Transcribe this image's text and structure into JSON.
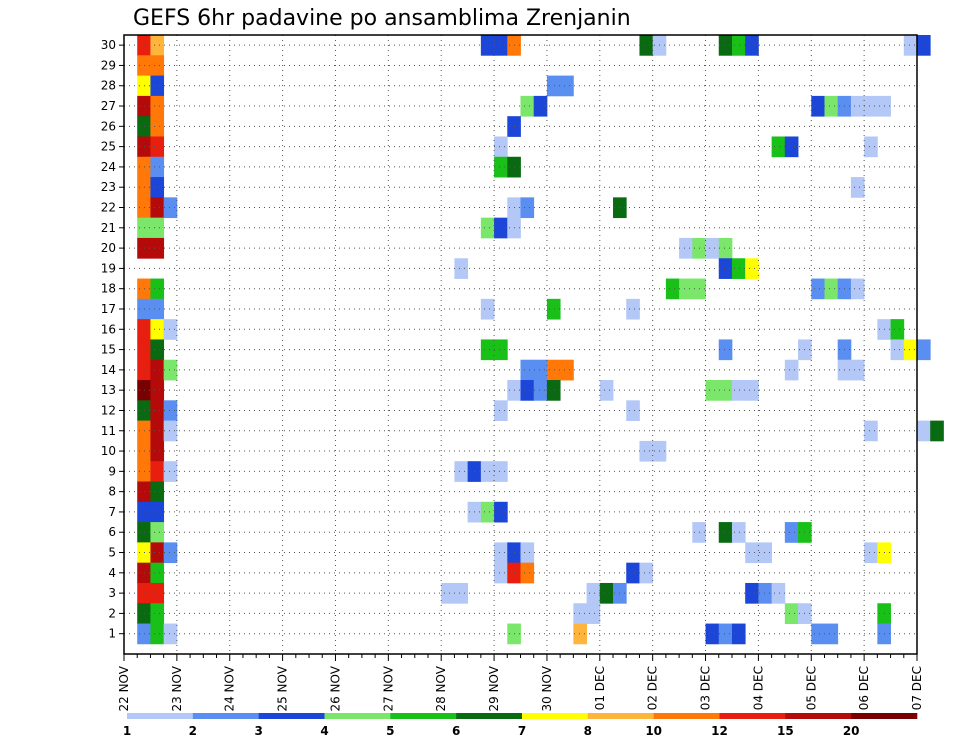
{
  "title": "GEFS 6hr padavine po ansamblima Zrenjanin",
  "chart_data": {
    "type": "heatmap",
    "title": "GEFS 6hr padavine po ansamblima Zrenjanin",
    "xlabel": "",
    "ylabel": "",
    "grid": true,
    "x_ticks": [
      "22 NOV",
      "23 NOV",
      "24 NOV",
      "25 NOV",
      "26 NOV",
      "27 NOV",
      "28 NOV",
      "29 NOV",
      "30 NOV",
      "01 DEC",
      "02 DEC",
      "03 DEC",
      "04 DEC",
      "05 DEC",
      "06 DEC",
      "07 DEC"
    ],
    "y_ticks": [
      "1",
      "2",
      "3",
      "4",
      "5",
      "6",
      "7",
      "8",
      "9",
      "10",
      "11",
      "12",
      "13",
      "14",
      "15",
      "16",
      "17",
      "18",
      "19",
      "20",
      "21",
      "22",
      "23",
      "24",
      "25",
      "26",
      "27",
      "28",
      "29",
      "30"
    ],
    "x_range_steps": [
      0,
      60
    ],
    "y_range_members": [
      0,
      30
    ],
    "colorbar": {
      "labels": [
        "1",
        "2",
        "3",
        "4",
        "5",
        "6",
        "7",
        "8",
        "10",
        "12",
        "15",
        "20"
      ],
      "colors": [
        "#b4c8f8",
        "#5a8ef0",
        "#1c46d8",
        "#7ae66a",
        "#18c018",
        "#0a6a12",
        "#ffff00",
        "#ffb43c",
        "#ff7808",
        "#e81e0e",
        "#b40a0a",
        "#780000"
      ]
    },
    "note_cells": "cells: [member, step_index_6h_from_22NOV00, color_class_0to11]",
    "cells": [
      [
        30,
        1,
        9
      ],
      [
        30,
        2,
        7
      ],
      [
        30,
        27,
        2
      ],
      [
        30,
        28,
        2
      ],
      [
        30,
        29,
        8
      ],
      [
        30,
        39,
        5
      ],
      [
        30,
        40,
        0
      ],
      [
        30,
        45,
        5
      ],
      [
        30,
        46,
        4
      ],
      [
        30,
        47,
        2
      ],
      [
        30,
        59,
        0
      ],
      [
        30,
        60,
        2
      ],
      [
        29,
        1,
        8
      ],
      [
        29,
        2,
        8
      ],
      [
        28,
        1,
        6
      ],
      [
        28,
        2,
        2
      ],
      [
        28,
        32,
        1
      ],
      [
        28,
        33,
        1
      ],
      [
        27,
        1,
        10
      ],
      [
        27,
        2,
        8
      ],
      [
        27,
        30,
        3
      ],
      [
        27,
        31,
        2
      ],
      [
        27,
        52,
        2
      ],
      [
        27,
        53,
        3
      ],
      [
        27,
        54,
        1
      ],
      [
        27,
        55,
        0
      ],
      [
        27,
        56,
        0
      ],
      [
        27,
        57,
        0
      ],
      [
        26,
        1,
        5
      ],
      [
        26,
        2,
        8
      ],
      [
        26,
        29,
        2
      ],
      [
        25,
        1,
        10
      ],
      [
        25,
        2,
        9
      ],
      [
        25,
        28,
        0
      ],
      [
        25,
        49,
        4
      ],
      [
        25,
        50,
        2
      ],
      [
        25,
        56,
        0
      ],
      [
        24,
        1,
        8
      ],
      [
        24,
        2,
        1
      ],
      [
        24,
        28,
        4
      ],
      [
        24,
        29,
        5
      ],
      [
        23,
        1,
        8
      ],
      [
        23,
        2,
        2
      ],
      [
        23,
        55,
        0
      ],
      [
        22,
        1,
        8
      ],
      [
        22,
        2,
        10
      ],
      [
        22,
        3,
        1
      ],
      [
        22,
        29,
        0
      ],
      [
        22,
        30,
        1
      ],
      [
        22,
        37,
        5
      ],
      [
        21,
        1,
        3
      ],
      [
        21,
        2,
        3
      ],
      [
        21,
        27,
        3
      ],
      [
        21,
        28,
        2
      ],
      [
        21,
        29,
        0
      ],
      [
        20,
        1,
        10
      ],
      [
        20,
        2,
        10
      ],
      [
        20,
        42,
        0
      ],
      [
        20,
        43,
        3
      ],
      [
        20,
        44,
        0
      ],
      [
        20,
        45,
        3
      ],
      [
        19,
        25,
        0
      ],
      [
        19,
        45,
        2
      ],
      [
        19,
        46,
        4
      ],
      [
        19,
        47,
        6
      ],
      [
        18,
        1,
        8
      ],
      [
        18,
        2,
        4
      ],
      [
        18,
        41,
        4
      ],
      [
        18,
        42,
        3
      ],
      [
        18,
        43,
        3
      ],
      [
        18,
        52,
        1
      ],
      [
        18,
        53,
        3
      ],
      [
        18,
        54,
        1
      ],
      [
        18,
        55,
        0
      ],
      [
        17,
        1,
        1
      ],
      [
        17,
        2,
        1
      ],
      [
        17,
        27,
        0
      ],
      [
        17,
        32,
        4
      ],
      [
        17,
        38,
        0
      ],
      [
        16,
        1,
        9
      ],
      [
        16,
        2,
        6
      ],
      [
        16,
        3,
        0
      ],
      [
        16,
        57,
        0
      ],
      [
        16,
        58,
        4
      ],
      [
        15,
        1,
        9
      ],
      [
        15,
        2,
        5
      ],
      [
        15,
        27,
        4
      ],
      [
        15,
        28,
        4
      ],
      [
        15,
        45,
        1
      ],
      [
        15,
        51,
        0
      ],
      [
        15,
        54,
        1
      ],
      [
        15,
        58,
        0
      ],
      [
        15,
        59,
        6
      ],
      [
        15,
        60,
        1
      ],
      [
        14,
        1,
        9
      ],
      [
        14,
        2,
        10
      ],
      [
        14,
        3,
        3
      ],
      [
        14,
        30,
        1
      ],
      [
        14,
        31,
        1
      ],
      [
        14,
        32,
        8
      ],
      [
        14,
        33,
        8
      ],
      [
        14,
        50,
        0
      ],
      [
        14,
        54,
        0
      ],
      [
        14,
        55,
        0
      ],
      [
        13,
        1,
        11
      ],
      [
        13,
        2,
        10
      ],
      [
        13,
        29,
        0
      ],
      [
        13,
        30,
        2
      ],
      [
        13,
        31,
        1
      ],
      [
        13,
        32,
        5
      ],
      [
        13,
        36,
        0
      ],
      [
        13,
        44,
        3
      ],
      [
        13,
        45,
        3
      ],
      [
        13,
        46,
        0
      ],
      [
        13,
        47,
        0
      ],
      [
        12,
        1,
        5
      ],
      [
        12,
        2,
        10
      ],
      [
        12,
        3,
        1
      ],
      [
        12,
        28,
        0
      ],
      [
        12,
        38,
        0
      ],
      [
        11,
        1,
        8
      ],
      [
        11,
        2,
        10
      ],
      [
        11,
        3,
        0
      ],
      [
        11,
        56,
        0
      ],
      [
        11,
        60,
        0
      ],
      [
        11,
        61,
        5
      ],
      [
        10,
        1,
        8
      ],
      [
        10,
        2,
        10
      ],
      [
        10,
        39,
        0
      ],
      [
        10,
        40,
        0
      ],
      [
        9,
        1,
        8
      ],
      [
        9,
        2,
        9
      ],
      [
        9,
        3,
        0
      ],
      [
        9,
        25,
        0
      ],
      [
        9,
        26,
        2
      ],
      [
        9,
        27,
        0
      ],
      [
        9,
        28,
        0
      ],
      [
        8,
        1,
        10
      ],
      [
        8,
        2,
        5
      ],
      [
        7,
        1,
        2
      ],
      [
        7,
        2,
        2
      ],
      [
        7,
        26,
        0
      ],
      [
        7,
        27,
        3
      ],
      [
        7,
        28,
        2
      ],
      [
        6,
        1,
        5
      ],
      [
        6,
        2,
        3
      ],
      [
        6,
        43,
        0
      ],
      [
        6,
        45,
        5
      ],
      [
        6,
        46,
        0
      ],
      [
        6,
        50,
        1
      ],
      [
        6,
        51,
        4
      ],
      [
        5,
        1,
        6
      ],
      [
        5,
        2,
        10
      ],
      [
        5,
        3,
        1
      ],
      [
        5,
        28,
        0
      ],
      [
        5,
        29,
        2
      ],
      [
        5,
        30,
        0
      ],
      [
        5,
        47,
        0
      ],
      [
        5,
        48,
        0
      ],
      [
        5,
        56,
        0
      ],
      [
        5,
        57,
        6
      ],
      [
        4,
        1,
        10
      ],
      [
        4,
        2,
        4
      ],
      [
        4,
        28,
        0
      ],
      [
        4,
        29,
        9
      ],
      [
        4,
        30,
        8
      ],
      [
        4,
        38,
        2
      ],
      [
        4,
        39,
        0
      ],
      [
        3,
        1,
        9
      ],
      [
        3,
        2,
        9
      ],
      [
        3,
        24,
        0
      ],
      [
        3,
        25,
        0
      ],
      [
        3,
        35,
        0
      ],
      [
        3,
        36,
        5
      ],
      [
        3,
        37,
        1
      ],
      [
        3,
        47,
        2
      ],
      [
        3,
        48,
        1
      ],
      [
        3,
        49,
        0
      ],
      [
        2,
        1,
        5
      ],
      [
        2,
        2,
        4
      ],
      [
        2,
        34,
        0
      ],
      [
        2,
        35,
        0
      ],
      [
        2,
        50,
        3
      ],
      [
        2,
        51,
        0
      ],
      [
        2,
        57,
        4
      ],
      [
        1,
        1,
        1
      ],
      [
        1,
        2,
        4
      ],
      [
        1,
        3,
        0
      ],
      [
        1,
        29,
        3
      ],
      [
        1,
        34,
        7
      ],
      [
        1,
        44,
        2
      ],
      [
        1,
        45,
        1
      ],
      [
        1,
        46,
        2
      ],
      [
        1,
        52,
        1
      ],
      [
        1,
        53,
        1
      ],
      [
        1,
        57,
        1
      ]
    ]
  }
}
